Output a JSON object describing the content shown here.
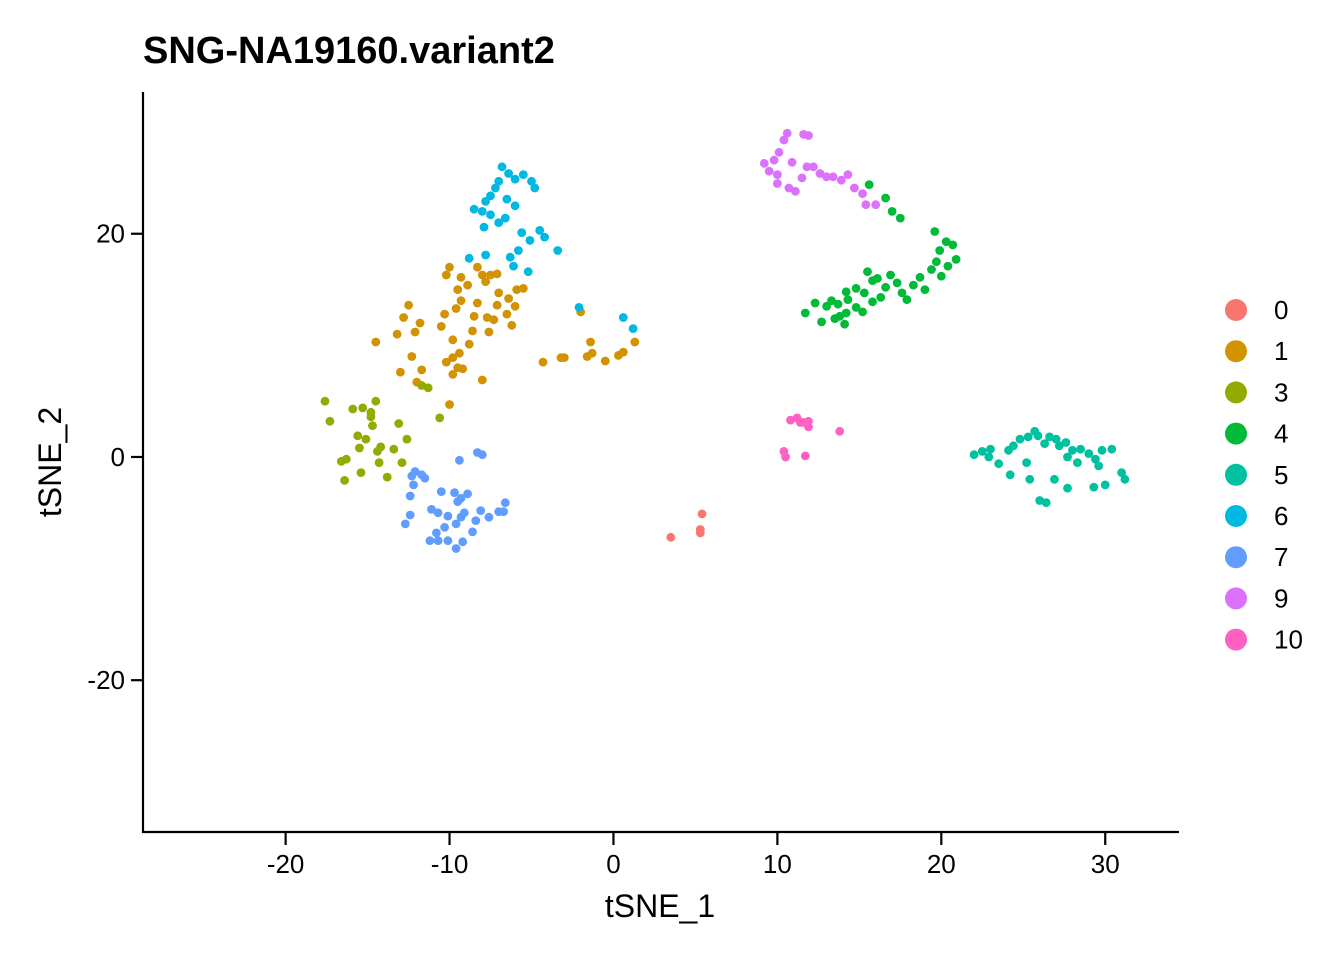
{
  "chart_data": {
    "type": "scatter",
    "title": "SNG-NA19160.variant2",
    "xlabel": "tSNE_1",
    "ylabel": "tSNE_2",
    "xlim": [
      -28.7,
      34.5
    ],
    "ylim": [
      -33.6,
      32.7
    ],
    "x_ticks": [
      "-20",
      "-10",
      "0",
      "10",
      "20",
      "30"
    ],
    "y_ticks": [
      "-20",
      "0",
      "20"
    ],
    "grid": false,
    "legend_position": "right",
    "series": [
      {
        "name": "0",
        "color": "#F8766D",
        "points": [
          [
            3.5,
            -7.2
          ],
          [
            5.3,
            -6.5
          ],
          [
            5.3,
            -6.8
          ],
          [
            5.4,
            -5.1
          ]
        ]
      },
      {
        "name": "1",
        "color": "#D39200",
        "points": [
          [
            -12.5,
            13.6
          ],
          [
            -12.8,
            12.5
          ],
          [
            -13.2,
            11.0
          ],
          [
            -12.1,
            11.2
          ],
          [
            -11.8,
            12.0
          ],
          [
            -14.5,
            10.3
          ],
          [
            -12.3,
            9.0
          ],
          [
            -13.0,
            7.6
          ],
          [
            -11.7,
            7.8
          ],
          [
            -12.0,
            6.7
          ],
          [
            -10.3,
            12.8
          ],
          [
            -10.5,
            11.7
          ],
          [
            -9.8,
            10.5
          ],
          [
            -10.2,
            8.5
          ],
          [
            -9.8,
            8.9
          ],
          [
            -9.5,
            8.0
          ],
          [
            -9.8,
            7.4
          ],
          [
            -9.2,
            7.9
          ],
          [
            -10.0,
            4.7
          ],
          [
            -8.0,
            6.9
          ],
          [
            -9.6,
            13.3
          ],
          [
            -9.3,
            14.0
          ],
          [
            -8.3,
            13.8
          ],
          [
            -8.5,
            12.6
          ],
          [
            -8.6,
            11.3
          ],
          [
            -7.7,
            12.5
          ],
          [
            -7.3,
            12.3
          ],
          [
            -9.5,
            15.0
          ],
          [
            -8.9,
            15.4
          ],
          [
            -8.0,
            16.3
          ],
          [
            -7.8,
            15.7
          ],
          [
            -7.5,
            16.3
          ],
          [
            -8.3,
            17.0
          ],
          [
            -7.1,
            16.4
          ],
          [
            -7.0,
            14.7
          ],
          [
            -7.1,
            13.6
          ],
          [
            -6.5,
            12.8
          ],
          [
            -6.0,
            13.5
          ],
          [
            -6.4,
            14.2
          ],
          [
            -5.9,
            15.0
          ],
          [
            -5.5,
            15.1
          ],
          [
            -6.2,
            11.8
          ],
          [
            -9.3,
            16.1
          ],
          [
            -10.2,
            16.3
          ],
          [
            -10.0,
            17.0
          ],
          [
            -7.6,
            11.2
          ],
          [
            -4.3,
            8.5
          ],
          [
            -3.2,
            8.9
          ],
          [
            -3.0,
            8.9
          ],
          [
            -1.6,
            9.0
          ],
          [
            -1.3,
            9.3
          ],
          [
            -0.5,
            8.6
          ],
          [
            0.3,
            9.1
          ],
          [
            0.6,
            9.4
          ],
          [
            1.3,
            10.3
          ],
          [
            -2.0,
            13.0
          ],
          [
            -1.4,
            10.3
          ],
          [
            -9.4,
            9.3
          ],
          [
            -8.8,
            10.1
          ]
        ]
      },
      {
        "name": "3",
        "color": "#93AA00",
        "points": [
          [
            -17.6,
            5.0
          ],
          [
            -17.3,
            3.2
          ],
          [
            -15.9,
            4.3
          ],
          [
            -15.3,
            4.4
          ],
          [
            -14.8,
            4.0
          ],
          [
            -14.8,
            3.6
          ],
          [
            -14.5,
            5.0
          ],
          [
            -14.7,
            2.8
          ],
          [
            -15.6,
            1.9
          ],
          [
            -15.1,
            1.6
          ],
          [
            -15.5,
            0.8
          ],
          [
            -16.3,
            -0.2
          ],
          [
            -16.6,
            -0.4
          ],
          [
            -15.4,
            -1.4
          ],
          [
            -16.4,
            -2.1
          ],
          [
            -14.4,
            0.5
          ],
          [
            -14.2,
            0.9
          ],
          [
            -13.4,
            0.7
          ],
          [
            -14.3,
            -0.5
          ],
          [
            -13.8,
            -1.8
          ],
          [
            -13.1,
            3.0
          ],
          [
            -12.6,
            1.6
          ],
          [
            -12.9,
            -0.5
          ],
          [
            -11.7,
            6.4
          ],
          [
            -11.3,
            6.2
          ],
          [
            -10.6,
            3.5
          ]
        ]
      },
      {
        "name": "4",
        "color": "#00BA38",
        "points": [
          [
            11.7,
            12.9
          ],
          [
            12.3,
            13.8
          ],
          [
            12.7,
            12.1
          ],
          [
            13.0,
            13.5
          ],
          [
            13.3,
            14.0
          ],
          [
            13.7,
            13.7
          ],
          [
            13.5,
            12.4
          ],
          [
            14.2,
            12.9
          ],
          [
            14.3,
            14.1
          ],
          [
            14.8,
            13.4
          ],
          [
            14.2,
            14.8
          ],
          [
            14.8,
            15.1
          ],
          [
            15.5,
            16.6
          ],
          [
            15.8,
            15.8
          ],
          [
            15.3,
            14.7
          ],
          [
            15.8,
            13.9
          ],
          [
            16.3,
            14.3
          ],
          [
            16.6,
            15.2
          ],
          [
            16.9,
            16.3
          ],
          [
            17.3,
            15.6
          ],
          [
            17.6,
            14.7
          ],
          [
            17.9,
            14.1
          ],
          [
            18.3,
            15.4
          ],
          [
            18.7,
            16.1
          ],
          [
            19.0,
            15.0
          ],
          [
            19.4,
            16.8
          ],
          [
            19.7,
            17.5
          ],
          [
            20.0,
            16.2
          ],
          [
            20.4,
            17.1
          ],
          [
            20.9,
            17.7
          ],
          [
            19.9,
            18.5
          ],
          [
            20.3,
            19.3
          ],
          [
            20.7,
            19.0
          ],
          [
            19.6,
            20.2
          ],
          [
            16.1,
            16.0
          ],
          [
            15.6,
            24.4
          ],
          [
            16.6,
            23.2
          ],
          [
            17.0,
            22.0
          ],
          [
            17.5,
            21.4
          ],
          [
            15.2,
            13.0
          ],
          [
            13.8,
            12.6
          ],
          [
            14.1,
            11.9
          ]
        ]
      },
      {
        "name": "5",
        "color": "#00C19F",
        "points": [
          [
            22.0,
            0.2
          ],
          [
            22.5,
            0.5
          ],
          [
            22.9,
            0.0
          ],
          [
            23.5,
            -0.6
          ],
          [
            24.1,
            0.6
          ],
          [
            24.4,
            1.0
          ],
          [
            24.8,
            1.6
          ],
          [
            25.3,
            1.8
          ],
          [
            25.7,
            2.3
          ],
          [
            25.9,
            1.9
          ],
          [
            26.3,
            1.2
          ],
          [
            26.6,
            1.8
          ],
          [
            27.0,
            1.6
          ],
          [
            27.2,
            1.0
          ],
          [
            27.6,
            1.3
          ],
          [
            28.0,
            0.6
          ],
          [
            28.5,
            0.7
          ],
          [
            29.0,
            0.3
          ],
          [
            29.4,
            -0.2
          ],
          [
            29.8,
            0.6
          ],
          [
            30.4,
            0.7
          ],
          [
            29.6,
            -0.8
          ],
          [
            28.3,
            -0.5
          ],
          [
            27.7,
            0.0
          ],
          [
            31.0,
            -1.4
          ],
          [
            31.2,
            -2.0
          ],
          [
            30.0,
            -2.5
          ],
          [
            29.3,
            -2.7
          ],
          [
            27.7,
            -2.8
          ],
          [
            26.9,
            -2.0
          ],
          [
            26.4,
            -4.1
          ],
          [
            26.0,
            -3.9
          ],
          [
            25.4,
            -2.0
          ],
          [
            24.2,
            -1.6
          ],
          [
            25.2,
            -0.5
          ],
          [
            23.0,
            0.7
          ]
        ]
      },
      {
        "name": "6",
        "color": "#00B9E3",
        "points": [
          [
            -8.5,
            22.2
          ],
          [
            -8.0,
            22.0
          ],
          [
            -7.5,
            21.7
          ],
          [
            -7.8,
            22.9
          ],
          [
            -7.5,
            23.4
          ],
          [
            -7.2,
            24.1
          ],
          [
            -7.0,
            24.7
          ],
          [
            -6.8,
            26.0
          ],
          [
            -6.4,
            25.4
          ],
          [
            -6.0,
            24.9
          ],
          [
            -5.5,
            25.3
          ],
          [
            -5.0,
            24.7
          ],
          [
            -6.5,
            23.1
          ],
          [
            -6.0,
            22.5
          ],
          [
            -7.0,
            21.0
          ],
          [
            -6.6,
            21.4
          ],
          [
            -5.6,
            20.1
          ],
          [
            -5.1,
            19.4
          ],
          [
            -4.5,
            20.3
          ],
          [
            -4.2,
            19.7
          ],
          [
            -3.4,
            18.5
          ],
          [
            -5.8,
            18.5
          ],
          [
            -6.3,
            17.9
          ],
          [
            -6.1,
            17.1
          ],
          [
            -5.2,
            16.6
          ],
          [
            -8.8,
            17.8
          ],
          [
            -7.8,
            18.1
          ],
          [
            -2.1,
            13.4
          ],
          [
            0.6,
            12.5
          ],
          [
            1.2,
            11.5
          ],
          [
            -7.9,
            20.6
          ],
          [
            -4.8,
            24.1
          ]
        ]
      },
      {
        "name": "7",
        "color": "#619CFF",
        "points": [
          [
            -12.1,
            -1.3
          ],
          [
            -11.7,
            -1.6
          ],
          [
            -12.3,
            -1.7
          ],
          [
            -12.2,
            -2.5
          ],
          [
            -12.4,
            -3.5
          ],
          [
            -11.5,
            -1.9
          ],
          [
            -11.1,
            -4.7
          ],
          [
            -10.5,
            -3.1
          ],
          [
            -10.1,
            -5.3
          ],
          [
            -9.7,
            -3.2
          ],
          [
            -9.3,
            -3.7
          ],
          [
            -8.9,
            -3.3
          ],
          [
            -9.5,
            -4.0
          ],
          [
            -10.7,
            -5.0
          ],
          [
            -10.3,
            -6.3
          ],
          [
            -10.8,
            -6.8
          ],
          [
            -11.2,
            -7.5
          ],
          [
            -10.7,
            -7.5
          ],
          [
            -10.1,
            -7.5
          ],
          [
            -9.6,
            -8.2
          ],
          [
            -9.2,
            -7.6
          ],
          [
            -8.6,
            -6.7
          ],
          [
            -8.4,
            -5.7
          ],
          [
            -8.1,
            -4.8
          ],
          [
            -7.6,
            -5.4
          ],
          [
            -7.0,
            -4.9
          ],
          [
            -6.7,
            -4.9
          ],
          [
            -6.6,
            -4.1
          ],
          [
            -9.1,
            -5.0
          ],
          [
            -9.3,
            -5.4
          ],
          [
            -12.7,
            -6.0
          ],
          [
            -12.4,
            -5.2
          ],
          [
            -8.3,
            0.4
          ],
          [
            -8.0,
            0.2
          ],
          [
            -9.4,
            -0.3
          ],
          [
            -9.6,
            -6.0
          ]
        ]
      },
      {
        "name": "9",
        "color": "#DB72FB",
        "points": [
          [
            9.2,
            26.3
          ],
          [
            9.5,
            25.6
          ],
          [
            9.8,
            26.6
          ],
          [
            10.0,
            25.3
          ],
          [
            10.1,
            27.3
          ],
          [
            10.4,
            28.4
          ],
          [
            10.6,
            29.0
          ],
          [
            10.9,
            26.4
          ],
          [
            11.5,
            25.0
          ],
          [
            11.8,
            26.0
          ],
          [
            12.2,
            26.0
          ],
          [
            12.6,
            25.4
          ],
          [
            13.0,
            25.1
          ],
          [
            13.4,
            25.1
          ],
          [
            13.9,
            24.8
          ],
          [
            14.3,
            25.3
          ],
          [
            14.7,
            24.1
          ],
          [
            15.2,
            23.6
          ],
          [
            15.4,
            22.6
          ],
          [
            16.0,
            22.6
          ],
          [
            11.6,
            28.9
          ],
          [
            11.9,
            28.8
          ],
          [
            10.7,
            24.1
          ],
          [
            11.1,
            23.8
          ],
          [
            10.0,
            24.5
          ]
        ]
      },
      {
        "name": "10",
        "color": "#FF61C3",
        "points": [
          [
            10.4,
            0.5
          ],
          [
            10.5,
            0.0
          ],
          [
            10.8,
            3.3
          ],
          [
            11.2,
            3.5
          ],
          [
            11.6,
            3.1
          ],
          [
            11.9,
            3.2
          ],
          [
            11.9,
            2.7
          ],
          [
            11.4,
            3.1
          ],
          [
            11.7,
            0.1
          ],
          [
            13.8,
            2.3
          ]
        ]
      }
    ]
  }
}
